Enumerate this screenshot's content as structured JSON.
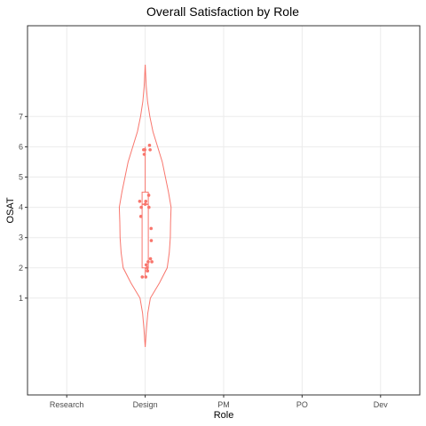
{
  "chart_data": {
    "type": "violin",
    "title": "Overall Satisfaction by Role",
    "xlabel": "Role",
    "ylabel": "OSAT",
    "categories": [
      "Research",
      "Design",
      "PM",
      "PO",
      "Dev"
    ],
    "y_ticks": [
      1,
      2,
      3,
      4,
      5,
      6,
      7
    ],
    "ylim": [
      -2.2,
      10.0
    ],
    "grid": true,
    "color": "#F8766D",
    "series": [
      {
        "category": "Design",
        "violin_min": -0.6,
        "violin_max": 8.7,
        "violin_density": [
          [
            -0.6,
            0.002
          ],
          [
            0.0,
            0.05
          ],
          [
            0.5,
            0.1
          ],
          [
            1.0,
            0.2
          ],
          [
            1.5,
            0.55
          ],
          [
            2.0,
            0.85
          ],
          [
            2.5,
            0.93
          ],
          [
            3.0,
            0.97
          ],
          [
            3.5,
            0.98
          ],
          [
            4.0,
            1.0
          ],
          [
            4.5,
            0.9
          ],
          [
            5.0,
            0.78
          ],
          [
            5.5,
            0.66
          ],
          [
            6.0,
            0.48
          ],
          [
            6.5,
            0.3
          ],
          [
            7.0,
            0.18
          ],
          [
            7.5,
            0.09
          ],
          [
            8.0,
            0.04
          ],
          [
            8.5,
            0.012
          ],
          [
            8.7,
            0.002
          ]
        ],
        "box": {
          "q1": 2.0,
          "median": 4.1,
          "q3": 4.5,
          "whisker_low": 1.7,
          "whisker_high": 6.0
        },
        "points": [
          [
            -0.28,
            4.2
          ],
          [
            -0.2,
            4.0
          ],
          [
            -0.22,
            3.7
          ],
          [
            -0.15,
            1.7
          ],
          [
            -0.08,
            5.9
          ],
          [
            -0.05,
            5.75
          ],
          [
            -0.02,
            5.9
          ],
          [
            0.0,
            4.1
          ],
          [
            0.03,
            4.2
          ],
          [
            0.05,
            2.1
          ],
          [
            0.1,
            2.0
          ],
          [
            0.12,
            1.9
          ],
          [
            0.15,
            2.2
          ],
          [
            0.18,
            4.4
          ],
          [
            0.19,
            4.0
          ],
          [
            0.22,
            6.05
          ],
          [
            0.25,
            5.9
          ],
          [
            0.27,
            2.3
          ],
          [
            0.3,
            3.3
          ],
          [
            0.31,
            2.9
          ],
          [
            0.34,
            2.2
          ],
          [
            0.03,
            1.7
          ],
          [
            0.11,
            1.9
          ]
        ]
      }
    ]
  }
}
